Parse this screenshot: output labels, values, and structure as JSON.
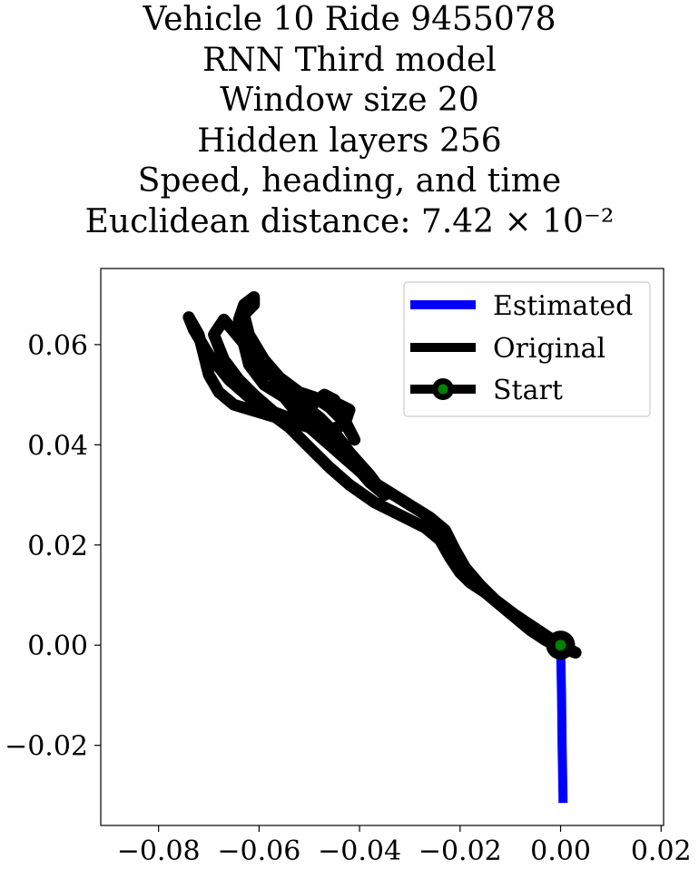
{
  "title_lines": [
    "Vehicle 10 Ride 9455078",
    "RNN Third model",
    "Window size 20",
    "Hidden layers 256",
    "Speed, heading, and time",
    "Euclidean distance: 7.42 × 10⁻²"
  ],
  "chart_data": {
    "type": "line",
    "title": "Vehicle 10 Ride 9455078 / RNN Third model / Window size 20 / Hidden layers 256 / Speed, heading, and time / Euclidean distance: 7.42 × 10⁻²",
    "xlabel": "",
    "ylabel": "",
    "xlim": [
      -0.0915,
      0.0205
    ],
    "ylim": [
      -0.036,
      0.0752
    ],
    "x_ticks": [
      -0.08,
      -0.06,
      -0.04,
      -0.02,
      0.0,
      0.02
    ],
    "x_tick_labels": [
      "−0.08",
      "−0.06",
      "−0.04",
      "−0.02",
      "0.00",
      "0.02"
    ],
    "y_ticks": [
      -0.02,
      0.0,
      0.02,
      0.04,
      0.06
    ],
    "y_tick_labels": [
      "−0.02",
      "0.00",
      "0.02",
      "0.04",
      "0.06"
    ],
    "grid": false,
    "legend_position": "top-right",
    "series": [
      {
        "name": "Estimated",
        "color": "#0000ff",
        "points": [
          [
            0.0,
            0.0
          ],
          [
            0.0002,
            -0.01
          ],
          [
            0.0003,
            -0.02
          ],
          [
            0.0005,
            -0.0315
          ]
        ]
      },
      {
        "name": "Original",
        "color": "#000000",
        "points": [
          [
            0.003,
            -0.0015
          ],
          [
            0.0,
            0.0
          ],
          [
            -0.003,
            0.002
          ],
          [
            -0.006,
            0.004
          ],
          [
            -0.009,
            0.006
          ],
          [
            -0.013,
            0.009
          ],
          [
            -0.016,
            0.012
          ],
          [
            -0.019,
            0.0155
          ],
          [
            -0.021,
            0.019
          ],
          [
            -0.023,
            0.023
          ],
          [
            -0.026,
            0.0255
          ],
          [
            -0.03,
            0.028
          ],
          [
            -0.034,
            0.0305
          ],
          [
            -0.038,
            0.033
          ],
          [
            -0.042,
            0.0365
          ],
          [
            -0.046,
            0.04
          ],
          [
            -0.05,
            0.0435
          ],
          [
            -0.053,
            0.047
          ],
          [
            -0.055,
            0.0495
          ],
          [
            -0.059,
            0.052
          ],
          [
            -0.062,
            0.056
          ],
          [
            -0.063,
            0.06
          ],
          [
            -0.064,
            0.065
          ],
          [
            -0.063,
            0.068
          ],
          [
            -0.061,
            0.0695
          ],
          [
            -0.061,
            0.068
          ],
          [
            -0.063,
            0.066
          ],
          [
            -0.062,
            0.062
          ],
          [
            -0.059,
            0.057
          ],
          [
            -0.056,
            0.0535
          ],
          [
            -0.052,
            0.0505
          ],
          [
            -0.049,
            0.0495
          ],
          [
            -0.046,
            0.0475
          ],
          [
            -0.043,
            0.0445
          ],
          [
            -0.041,
            0.041
          ],
          [
            -0.043,
            0.045
          ],
          [
            -0.045,
            0.049
          ],
          [
            -0.047,
            0.05
          ],
          [
            -0.049,
            0.0485
          ],
          [
            -0.05,
            0.0465
          ],
          [
            -0.047,
            0.0435
          ],
          [
            -0.044,
            0.04
          ],
          [
            -0.041,
            0.036
          ],
          [
            -0.038,
            0.0325
          ],
          [
            -0.035,
            0.03
          ],
          [
            -0.038,
            0.034
          ],
          [
            -0.042,
            0.0385
          ],
          [
            -0.045,
            0.0425
          ],
          [
            -0.048,
            0.0455
          ],
          [
            -0.052,
            0.0485
          ],
          [
            -0.055,
            0.052
          ],
          [
            -0.059,
            0.055
          ],
          [
            -0.062,
            0.059
          ],
          [
            -0.067,
            0.065
          ],
          [
            -0.069,
            0.062
          ],
          [
            -0.067,
            0.057
          ],
          [
            -0.064,
            0.053
          ],
          [
            -0.061,
            0.05
          ],
          [
            -0.057,
            0.0465
          ],
          [
            -0.053,
            0.045
          ],
          [
            -0.05,
            0.0485
          ],
          [
            -0.048,
            0.049
          ],
          [
            -0.045,
            0.0485
          ],
          [
            -0.042,
            0.047
          ],
          [
            -0.043,
            0.044
          ],
          [
            -0.046,
            0.043
          ],
          [
            -0.05,
            0.0435
          ],
          [
            -0.055,
            0.045
          ],
          [
            -0.06,
            0.0465
          ],
          [
            -0.065,
            0.048
          ],
          [
            -0.068,
            0.0505
          ],
          [
            -0.07,
            0.054
          ],
          [
            -0.071,
            0.058
          ],
          [
            -0.072,
            0.062
          ],
          [
            -0.074,
            0.0655
          ],
          [
            -0.073,
            0.063
          ],
          [
            -0.07,
            0.058
          ],
          [
            -0.066,
            0.053
          ],
          [
            -0.062,
            0.0495
          ],
          [
            -0.058,
            0.0465
          ],
          [
            -0.054,
            0.0435
          ],
          [
            -0.05,
            0.0395
          ],
          [
            -0.046,
            0.0355
          ],
          [
            -0.042,
            0.032
          ],
          [
            -0.037,
            0.0285
          ],
          [
            -0.032,
            0.026
          ],
          [
            -0.027,
            0.0235
          ],
          [
            -0.024,
            0.021
          ],
          [
            -0.022,
            0.0175
          ],
          [
            -0.02,
            0.0145
          ],
          [
            -0.018,
            0.0125
          ],
          [
            -0.015,
            0.0105
          ],
          [
            -0.012,
            0.008
          ],
          [
            -0.009,
            0.0055
          ],
          [
            -0.006,
            0.003
          ],
          [
            -0.003,
            0.001
          ],
          [
            0.0,
            -0.0005
          ],
          [
            0.003,
            -0.0015
          ]
        ]
      },
      {
        "name": "Start",
        "color": "#000000",
        "marker_face": "#008000",
        "points": [
          [
            0.0,
            0.0
          ]
        ]
      }
    ],
    "legend": [
      "Estimated",
      "Original",
      "Start"
    ]
  }
}
